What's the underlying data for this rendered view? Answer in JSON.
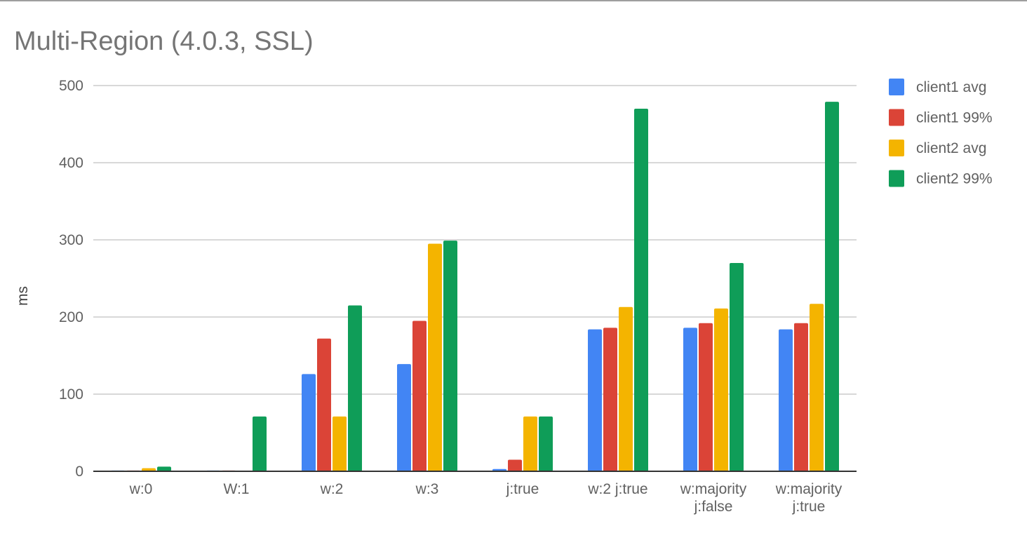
{
  "chart_data": {
    "type": "bar",
    "title": "Multi-Region (4.0.3, SSL)",
    "xlabel": "",
    "ylabel": "ms",
    "ylim": [
      0,
      500
    ],
    "yticks": [
      "0",
      "100",
      "200",
      "300",
      "400",
      "500"
    ],
    "grid": true,
    "legend_position": "right",
    "categories": [
      [
        "w:0"
      ],
      [
        "W:1"
      ],
      [
        "w:2"
      ],
      [
        "w:3"
      ],
      [
        "j:true"
      ],
      [
        "w:2 j:true"
      ],
      [
        "w:majority",
        "j:false"
      ],
      [
        "w:majority",
        "j:true"
      ]
    ],
    "series": [
      {
        "name": "client1 avg",
        "color": "#4285f4",
        "values": [
          1,
          1,
          126,
          139,
          3,
          184,
          186,
          184
        ]
      },
      {
        "name": "client1 99%",
        "color": "#db4437",
        "values": [
          1,
          1,
          172,
          195,
          15,
          186,
          192,
          192
        ]
      },
      {
        "name": "client2 avg",
        "color": "#f4b400",
        "values": [
          4,
          0,
          71,
          295,
          71,
          213,
          211,
          217
        ]
      },
      {
        "name": "client2 99%",
        "color": "#0f9d58",
        "values": [
          6,
          71,
          215,
          299,
          71,
          470,
          270,
          479
        ]
      }
    ]
  }
}
